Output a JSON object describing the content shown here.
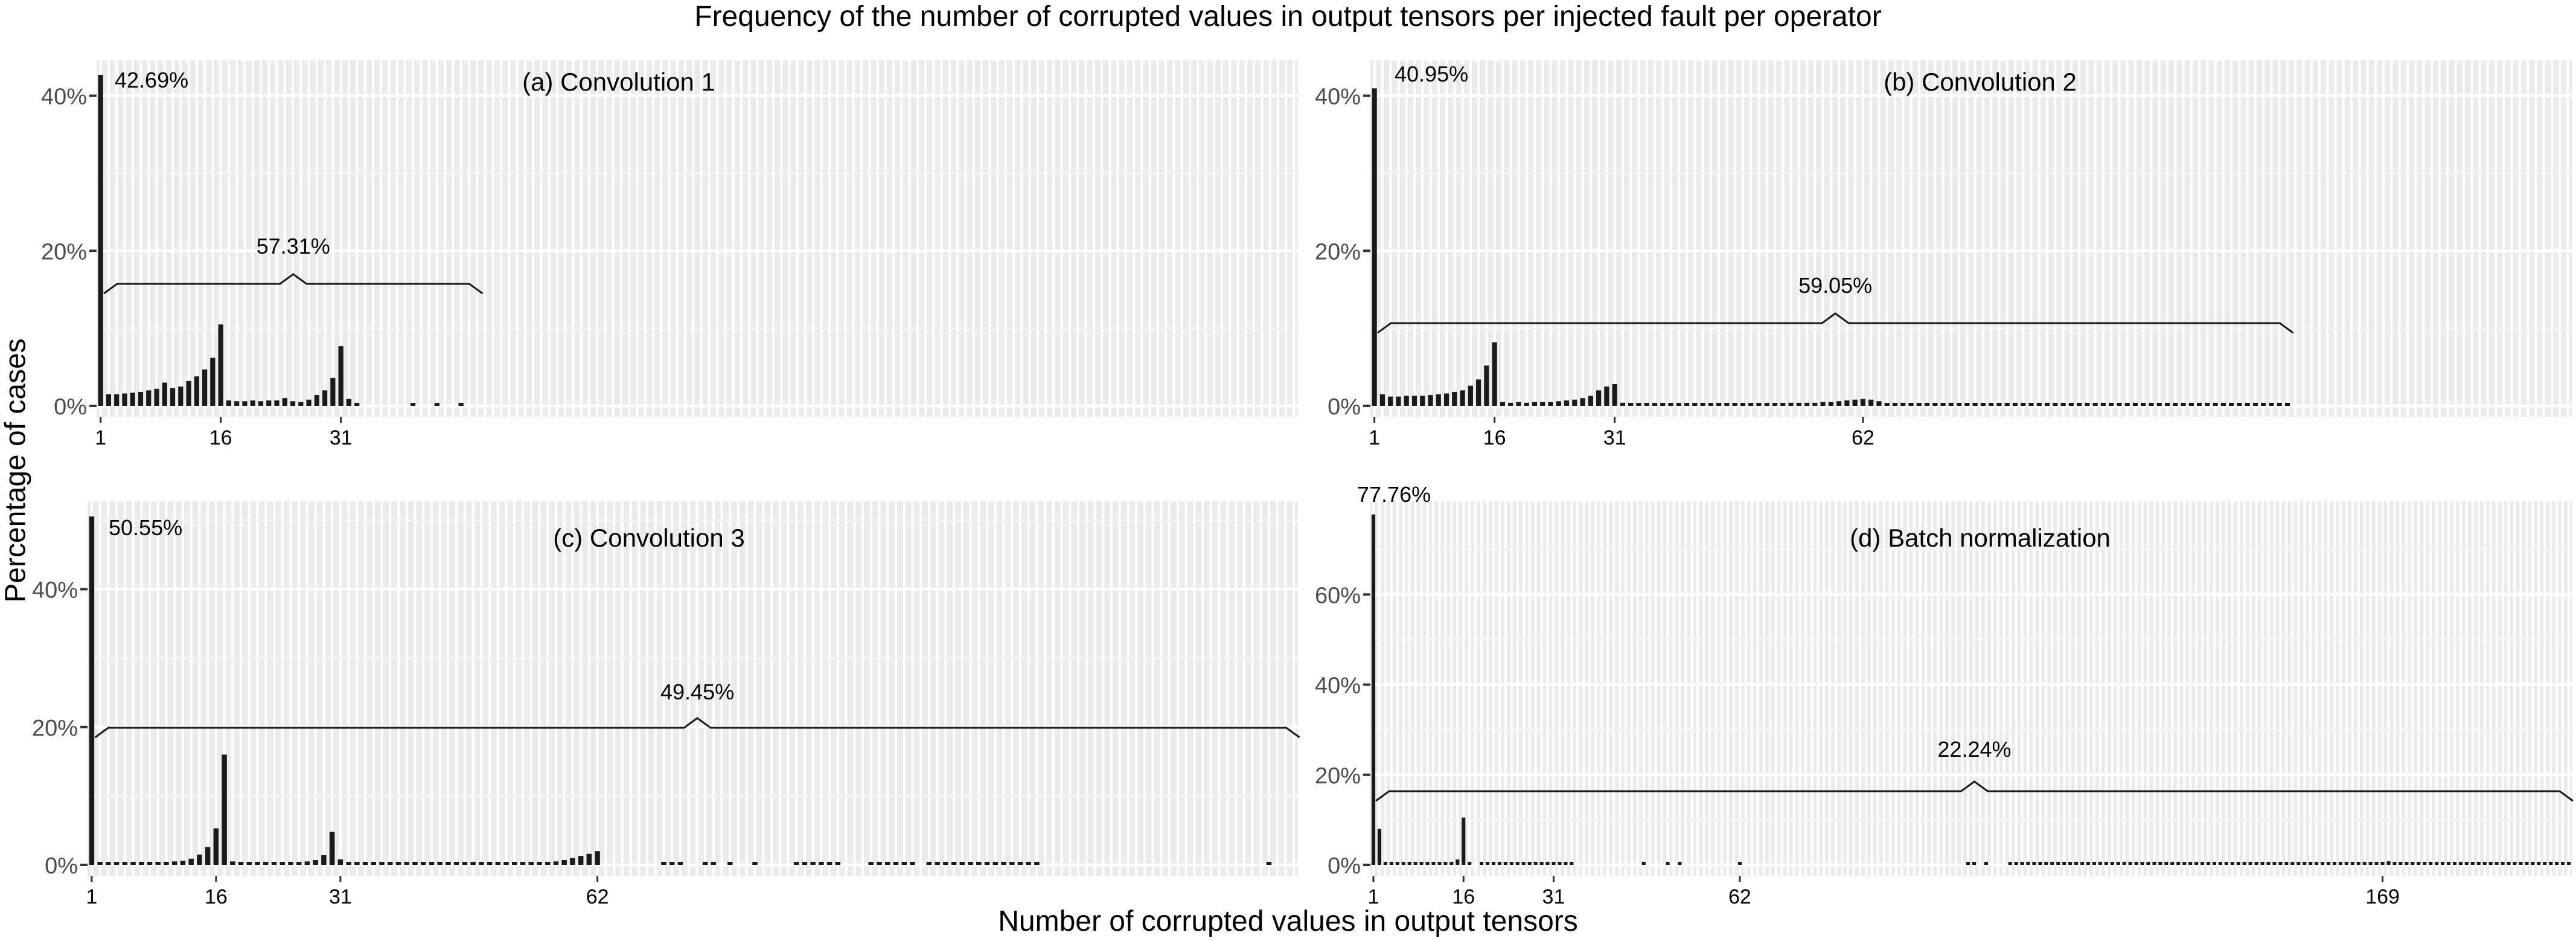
{
  "title": "Frequency of the number of corrupted values in output tensors per injected fault per operator",
  "xlabel": "Number of corrupted values in output tensors",
  "ylabel": "Percentage of cases",
  "chart_data": [
    {
      "type": "bar",
      "panel": "(a) Convolution 1",
      "x_ticks": [
        "1",
        "16",
        "31"
      ],
      "xlim": [
        1,
        150
      ],
      "ylim": [
        0,
        43
      ],
      "y_ticks": [
        "0%",
        "20%",
        "40%"
      ],
      "y_tick_values": [
        0,
        20,
        40
      ],
      "grid": true,
      "x": [
        1,
        2,
        3,
        4,
        5,
        6,
        7,
        8,
        9,
        10,
        11,
        12,
        13,
        14,
        15,
        16,
        17,
        18,
        19,
        20,
        21,
        22,
        23,
        24,
        25,
        26,
        27,
        28,
        29,
        30,
        31,
        32,
        33,
        40,
        43,
        46
      ],
      "values": [
        42.69,
        1.5,
        1.5,
        1.6,
        1.7,
        1.8,
        2.0,
        2.2,
        3.0,
        2.3,
        2.5,
        3.2,
        3.8,
        4.7,
        6.2,
        10.5,
        0.7,
        0.6,
        0.6,
        0.7,
        0.6,
        0.7,
        0.7,
        1.0,
        0.6,
        0.5,
        0.8,
        1.4,
        2.0,
        3.6,
        7.7,
        0.9,
        0.2,
        0.2,
        0.2,
        0.2
      ],
      "annotations": [
        {
          "label": "42.69%"
        },
        {
          "label": "57.31%",
          "x_range": [
            1,
            48
          ]
        }
      ]
    },
    {
      "type": "bar",
      "panel": "(b) Convolution 2",
      "x_ticks": [
        "1",
        "16",
        "31",
        "62"
      ],
      "xlim": [
        1,
        150
      ],
      "ylim": [
        0,
        43
      ],
      "y_ticks": [
        "0%",
        "20%",
        "40%"
      ],
      "y_tick_values": [
        0,
        20,
        40
      ],
      "grid": true,
      "x": [
        1,
        2,
        3,
        4,
        5,
        6,
        7,
        8,
        9,
        10,
        11,
        12,
        13,
        14,
        15,
        16,
        17,
        18,
        19,
        20,
        21,
        22,
        23,
        24,
        25,
        26,
        27,
        28,
        29,
        30,
        31,
        32,
        33,
        34,
        35,
        36,
        37,
        38,
        39,
        40,
        41,
        42,
        43,
        44,
        45,
        46,
        47,
        48,
        49,
        50,
        51,
        52,
        53,
        54,
        55,
        56,
        57,
        58,
        59,
        60,
        61,
        62,
        63,
        64,
        65,
        66,
        67,
        68,
        69,
        70,
        71,
        72,
        73,
        74,
        75,
        76,
        77,
        78,
        79,
        80,
        81,
        82,
        83,
        84,
        85,
        86,
        87,
        88,
        89,
        90,
        91,
        92,
        93,
        94,
        95,
        96,
        97,
        98,
        99,
        100,
        101,
        102,
        103,
        104,
        105,
        106,
        107,
        108,
        109,
        110,
        111,
        112,
        113,
        114,
        115
      ],
      "values": [
        40.95,
        1.5,
        1.2,
        1.2,
        1.3,
        1.3,
        1.3,
        1.4,
        1.5,
        1.6,
        1.8,
        2.0,
        2.6,
        3.4,
        5.2,
        8.2,
        0.5,
        0.4,
        0.5,
        0.4,
        0.5,
        0.5,
        0.5,
        0.6,
        0.7,
        0.8,
        1.0,
        1.3,
        2.0,
        2.5,
        2.8,
        0.4,
        0.3,
        0.3,
        0.3,
        0.3,
        0.3,
        0.3,
        0.3,
        0.3,
        0.3,
        0.3,
        0.3,
        0.3,
        0.3,
        0.3,
        0.3,
        0.3,
        0.3,
        0.3,
        0.3,
        0.3,
        0.4,
        0.4,
        0.4,
        0.4,
        0.5,
        0.5,
        0.6,
        0.7,
        0.8,
        0.9,
        0.8,
        0.6,
        0.2,
        0.2,
        0.2,
        0.2,
        0.2,
        0.2,
        0.2,
        0.2,
        0.2,
        0.2,
        0.2,
        0.2,
        0.2,
        0.2,
        0.2,
        0.2,
        0.2,
        0.2,
        0.2,
        0.2,
        0.2,
        0.2,
        0.2,
        0.2,
        0.2,
        0.2,
        0.2,
        0.2,
        0.2,
        0.2,
        0.2,
        0.2,
        0.2,
        0.2,
        0.2,
        0.2,
        0.2,
        0.2,
        0.2,
        0.2,
        0.2,
        0.2,
        0.2,
        0.2,
        0.2,
        0.2,
        0.2,
        0.2,
        0.2,
        0.2,
        0.2
      ],
      "annotations": [
        {
          "label": "40.95%"
        },
        {
          "label": "59.05%",
          "x_range": [
            1,
            115
          ]
        }
      ]
    },
    {
      "type": "bar",
      "panel": "(c) Convolution 3",
      "x_ticks": [
        "1",
        "16",
        "31",
        "62"
      ],
      "xlim": [
        1,
        146
      ],
      "ylim": [
        0,
        51
      ],
      "y_ticks": [
        "0%",
        "20%",
        "40%"
      ],
      "y_tick_values": [
        0,
        20,
        40
      ],
      "grid": true,
      "x": [
        1,
        2,
        3,
        4,
        5,
        6,
        7,
        8,
        9,
        10,
        11,
        12,
        13,
        14,
        15,
        16,
        17,
        18,
        19,
        20,
        21,
        22,
        23,
        24,
        25,
        26,
        27,
        28,
        29,
        30,
        31,
        32,
        33,
        34,
        35,
        36,
        37,
        38,
        39,
        40,
        41,
        42,
        43,
        44,
        45,
        46,
        47,
        48,
        49,
        50,
        51,
        52,
        53,
        54,
        55,
        56,
        57,
        58,
        59,
        60,
        61,
        62,
        70,
        71,
        72,
        75,
        76,
        78,
        81,
        86,
        87,
        88,
        89,
        90,
        91,
        95,
        96,
        97,
        98,
        99,
        100,
        102,
        103,
        104,
        105,
        106,
        107,
        108,
        109,
        110,
        111,
        112,
        113,
        114,
        115,
        143
      ],
      "values": [
        50.55,
        0.4,
        0.3,
        0.3,
        0.3,
        0.3,
        0.3,
        0.3,
        0.3,
        0.4,
        0.5,
        0.6,
        0.9,
        1.5,
        2.6,
        5.3,
        16.0,
        0.5,
        0.3,
        0.3,
        0.3,
        0.3,
        0.3,
        0.3,
        0.3,
        0.4,
        0.5,
        0.7,
        1.4,
        4.8,
        0.8,
        0.3,
        0.3,
        0.3,
        0.3,
        0.3,
        0.3,
        0.3,
        0.3,
        0.3,
        0.3,
        0.3,
        0.3,
        0.3,
        0.3,
        0.3,
        0.3,
        0.3,
        0.3,
        0.3,
        0.3,
        0.3,
        0.3,
        0.3,
        0.3,
        0.4,
        0.5,
        0.7,
        1.0,
        1.3,
        1.6,
        2.0,
        0.2,
        0.2,
        0.2,
        0.2,
        0.2,
        0.2,
        0.2,
        0.2,
        0.2,
        0.2,
        0.2,
        0.2,
        0.2,
        0.2,
        0.2,
        0.2,
        0.2,
        0.2,
        0.2,
        0.2,
        0.2,
        0.2,
        0.2,
        0.2,
        0.2,
        0.2,
        0.2,
        0.2,
        0.2,
        0.2,
        0.2,
        0.2,
        0.2,
        0.2
      ],
      "annotations": [
        {
          "label": "50.55%"
        },
        {
          "label": "49.45%",
          "x_range": [
            1,
            146
          ]
        }
      ]
    },
    {
      "type": "bar",
      "panel": "(d) Batch normalization",
      "x_ticks": [
        "1",
        "16",
        "31",
        "62",
        "169"
      ],
      "xlim": [
        1,
        200
      ],
      "ylim": [
        0,
        78
      ],
      "y_ticks": [
        "0%",
        "20%",
        "40%",
        "60%"
      ],
      "y_tick_values": [
        0,
        20,
        40,
        60
      ],
      "grid": true,
      "x": [
        1,
        2,
        3,
        4,
        5,
        6,
        7,
        8,
        9,
        10,
        11,
        12,
        13,
        14,
        15,
        16,
        17,
        19,
        20,
        21,
        22,
        23,
        24,
        25,
        26,
        27,
        28,
        29,
        30,
        31,
        32,
        33,
        34,
        46,
        50,
        52,
        62,
        100,
        101,
        103,
        107,
        108,
        109,
        110,
        111,
        112,
        113,
        114,
        115,
        116,
        117,
        118,
        119,
        120,
        121,
        122,
        123,
        124,
        125,
        126,
        127,
        128,
        129,
        130,
        131,
        132,
        133,
        134,
        135,
        136,
        137,
        138,
        139,
        140,
        141,
        142,
        143,
        144,
        145,
        146,
        147,
        148,
        149,
        150,
        151,
        152,
        153,
        154,
        155,
        156,
        157,
        158,
        159,
        160,
        161,
        162,
        163,
        164,
        165,
        166,
        167,
        168,
        169,
        170,
        171,
        172,
        173,
        174,
        175,
        176,
        177,
        178,
        179,
        180,
        181,
        182,
        183,
        184,
        185,
        186,
        187,
        188,
        189,
        190,
        191,
        192,
        193,
        194,
        195,
        196,
        197,
        198,
        199,
        200
      ],
      "values": [
        77.76,
        8.0,
        0.3,
        0.3,
        0.3,
        0.3,
        0.3,
        0.3,
        0.3,
        0.3,
        0.3,
        0.4,
        0.5,
        0.6,
        1.2,
        10.5,
        0.5,
        0.3,
        0.3,
        0.3,
        0.3,
        0.3,
        0.3,
        0.3,
        0.3,
        0.3,
        0.3,
        0.3,
        0.3,
        0.5,
        0.4,
        0.3,
        0.3,
        0.3,
        0.3,
        0.3,
        0.3,
        0.3,
        0.3,
        0.3,
        0.3,
        0.3,
        0.3,
        0.3,
        0.3,
        0.3,
        0.3,
        0.3,
        0.3,
        0.3,
        0.3,
        0.3,
        0.3,
        0.3,
        0.3,
        0.3,
        0.3,
        0.3,
        0.3,
        0.3,
        0.3,
        0.3,
        0.3,
        0.3,
        0.3,
        0.3,
        0.3,
        0.3,
        0.3,
        0.3,
        0.3,
        0.3,
        0.3,
        0.3,
        0.3,
        0.3,
        0.3,
        0.3,
        0.3,
        0.3,
        0.3,
        0.3,
        0.3,
        0.3,
        0.3,
        0.3,
        0.3,
        0.3,
        0.3,
        0.3,
        0.3,
        0.3,
        0.3,
        0.3,
        0.3,
        0.3,
        0.3,
        0.3,
        0.3,
        0.3,
        0.3,
        0.3,
        0.3,
        0.8,
        0.3,
        0.3,
        0.3,
        0.3,
        0.3,
        0.3,
        0.3,
        0.3,
        0.3,
        0.3,
        0.3,
        0.3,
        0.3,
        0.3,
        0.3,
        0.3,
        0.3,
        0.3,
        0.3,
        0.3,
        0.3,
        0.3,
        0.3,
        0.3,
        0.3,
        0.3,
        0.3,
        0.3,
        0.3,
        0.3
      ],
      "annotations": [
        {
          "label": "77.76%"
        },
        {
          "label": "22.24%",
          "x_range": [
            1,
            200
          ]
        }
      ]
    }
  ]
}
